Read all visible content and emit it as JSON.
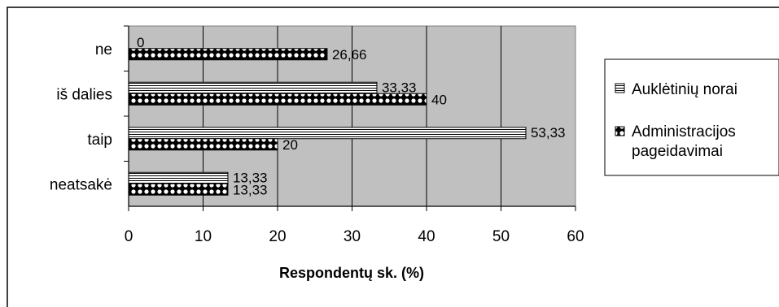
{
  "chart_data": {
    "type": "bar",
    "orientation": "horizontal",
    "categories": [
      "ne",
      "iš dalies",
      "taip",
      "neatsakė"
    ],
    "series": [
      {
        "name": "Auklėtinių norai",
        "values": [
          0,
          33.33,
          53.33,
          13.33
        ],
        "data_labels": [
          "0",
          "33,33",
          "53,33",
          "13,33"
        ],
        "pattern": "horizontal-stripes"
      },
      {
        "name": "Administracijos pageidavimai",
        "values": [
          26.66,
          40,
          20,
          13.33
        ],
        "data_labels": [
          "26,66",
          "40",
          "20",
          "13,33"
        ],
        "pattern": "checker"
      }
    ],
    "xlabel": "Respondentų sk. (%)",
    "ylabel": "",
    "xlim": [
      0,
      60
    ],
    "xticks": [
      0,
      10,
      20,
      30,
      40,
      50,
      60
    ],
    "grid": "vertical",
    "legend": "right",
    "colors": {
      "plot_background": "#c0c0c0",
      "bar_stroke": "#000000"
    }
  }
}
